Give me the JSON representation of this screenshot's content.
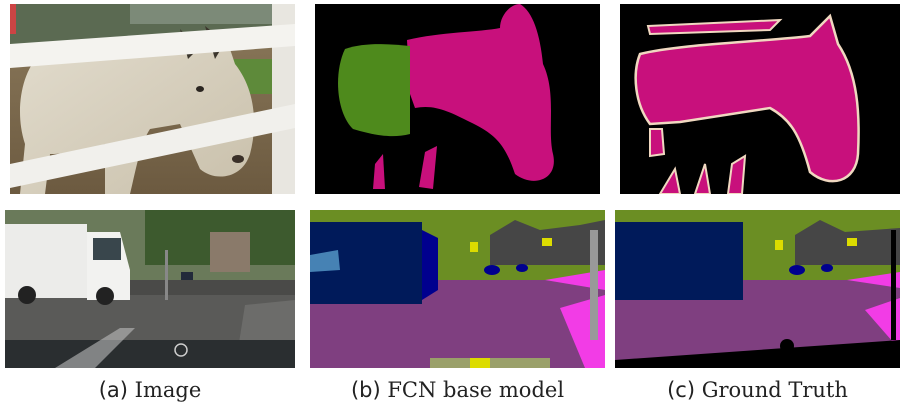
{
  "captions": [
    {
      "tag": "(a)",
      "text": "Image"
    },
    {
      "tag": "(b)",
      "text": "FCN base model"
    },
    {
      "tag": "(c)",
      "text": "Ground Truth"
    }
  ],
  "colors": {
    "horse_class": "#c8107c",
    "horse_misclassified": "#4e8a1c",
    "background": "#000000",
    "boundary": "#f0d8c0",
    "road": "#7f3f80",
    "sidewalk": "#f23ce6",
    "vegetation": "#6b8e23",
    "building": "#464646",
    "car": "#00008e",
    "truck": "#001a5a",
    "pole": "#999999",
    "sign": "#dcdc00",
    "sky": "#4682b4"
  }
}
